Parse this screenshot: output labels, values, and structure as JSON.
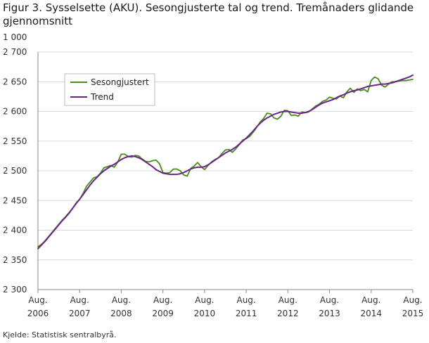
{
  "header": {
    "title": "Figur 3. Sysselsette (AKU).  Sesongjusterte tal og trend. Tremånaders glidande gjennomsnitt",
    "unit": "1 000"
  },
  "footer": {
    "source": "Kjelde: Statistisk sentralbyrå."
  },
  "colors": {
    "seasonal": "#4a8c1c",
    "trend": "#6b2487",
    "grid": "#d9d9d9",
    "axis": "#888888"
  },
  "chart_data": {
    "type": "line",
    "title": "Figur 3. Sysselsette (AKU).  Sesongjusterte tal og trend. Tremånaders glidande gjennomsnitt",
    "ylabel": "1 000",
    "xlabel": "",
    "ylim": [
      2300,
      2700
    ],
    "yticks": [
      2300,
      2350,
      2400,
      2450,
      2500,
      2550,
      2600,
      2650,
      2700
    ],
    "ytick_labels": [
      "2 300",
      "2 350",
      "2 400",
      "2 450",
      "2 500",
      "2 550",
      "2 600",
      "2 650",
      "2 700"
    ],
    "x_start": "2006-08",
    "x_end": "2015-08",
    "xticks": [
      {
        "month": "2006-08",
        "line1": "Aug.",
        "line2": "2006"
      },
      {
        "month": "2007-08",
        "line1": "Aug.",
        "line2": "2007"
      },
      {
        "month": "2008-08",
        "line1": "Aug.",
        "line2": "2008"
      },
      {
        "month": "2009-08",
        "line1": "Aug.",
        "line2": "2009"
      },
      {
        "month": "2010-08",
        "line1": "Aug.",
        "line2": "2010"
      },
      {
        "month": "2011-08",
        "line1": "Aug.",
        "line2": "2011"
      },
      {
        "month": "2012-08",
        "line1": "Aug.",
        "line2": "2012"
      },
      {
        "month": "2013-08",
        "line1": "Aug.",
        "line2": "2013"
      },
      {
        "month": "2014-08",
        "line1": "Aug.",
        "line2": "2014"
      },
      {
        "month": "2015-08",
        "line1": "Aug.",
        "line2": "2015"
      }
    ],
    "grid": true,
    "legend": "top-left",
    "series": [
      {
        "name": "Sesongjustert",
        "color": "#4a8c1c",
        "points": [
          [
            "2006-08",
            2372
          ],
          [
            "2006-09",
            2376
          ],
          [
            "2006-10",
            2382
          ],
          [
            "2006-11",
            2389
          ],
          [
            "2006-12",
            2396
          ],
          [
            "2007-01",
            2403
          ],
          [
            "2007-02",
            2410
          ],
          [
            "2007-03",
            2417
          ],
          [
            "2007-04",
            2423
          ],
          [
            "2007-05",
            2430
          ],
          [
            "2007-06",
            2437
          ],
          [
            "2007-07",
            2446
          ],
          [
            "2007-08",
            2452
          ],
          [
            "2007-09",
            2462
          ],
          [
            "2007-10",
            2474
          ],
          [
            "2007-11",
            2481
          ],
          [
            "2007-12",
            2488
          ],
          [
            "2008-01",
            2490
          ],
          [
            "2008-02",
            2496
          ],
          [
            "2008-03",
            2505
          ],
          [
            "2008-04",
            2507
          ],
          [
            "2008-05",
            2509
          ],
          [
            "2008-06",
            2506
          ],
          [
            "2008-07",
            2515
          ],
          [
            "2008-08",
            2528
          ],
          [
            "2008-09",
            2528
          ],
          [
            "2008-10",
            2524
          ],
          [
            "2008-11",
            2523
          ],
          [
            "2008-12",
            2526
          ],
          [
            "2009-01",
            2525
          ],
          [
            "2009-02",
            2520
          ],
          [
            "2009-03",
            2516
          ],
          [
            "2009-04",
            2515
          ],
          [
            "2009-05",
            2517
          ],
          [
            "2009-06",
            2518
          ],
          [
            "2009-07",
            2512
          ],
          [
            "2009-08",
            2497
          ],
          [
            "2009-09",
            2496
          ],
          [
            "2009-10",
            2497
          ],
          [
            "2009-11",
            2503
          ],
          [
            "2009-12",
            2503
          ],
          [
            "2010-01",
            2500
          ],
          [
            "2010-02",
            2493
          ],
          [
            "2010-03",
            2491
          ],
          [
            "2010-04",
            2504
          ],
          [
            "2010-05",
            2508
          ],
          [
            "2010-06",
            2514
          ],
          [
            "2010-07",
            2507
          ],
          [
            "2010-08",
            2502
          ],
          [
            "2010-09",
            2509
          ],
          [
            "2010-10",
            2515
          ],
          [
            "2010-11",
            2519
          ],
          [
            "2010-12",
            2522
          ],
          [
            "2011-01",
            2529
          ],
          [
            "2011-02",
            2535
          ],
          [
            "2011-03",
            2536
          ],
          [
            "2011-04",
            2531
          ],
          [
            "2011-05",
            2537
          ],
          [
            "2011-06",
            2544
          ],
          [
            "2011-07",
            2552
          ],
          [
            "2011-08",
            2554
          ],
          [
            "2011-09",
            2558
          ],
          [
            "2011-10",
            2565
          ],
          [
            "2011-11",
            2573
          ],
          [
            "2011-12",
            2582
          ],
          [
            "2012-01",
            2588
          ],
          [
            "2012-02",
            2597
          ],
          [
            "2012-03",
            2596
          ],
          [
            "2012-04",
            2589
          ],
          [
            "2012-05",
            2587
          ],
          [
            "2012-06",
            2592
          ],
          [
            "2012-07",
            2602
          ],
          [
            "2012-08",
            2601
          ],
          [
            "2012-09",
            2593
          ],
          [
            "2012-10",
            2594
          ],
          [
            "2012-11",
            2592
          ],
          [
            "2012-12",
            2599
          ],
          [
            "2013-01",
            2598
          ],
          [
            "2013-02",
            2599
          ],
          [
            "2013-03",
            2604
          ],
          [
            "2013-04",
            2609
          ],
          [
            "2013-05",
            2612
          ],
          [
            "2013-06",
            2617
          ],
          [
            "2013-07",
            2619
          ],
          [
            "2013-08",
            2624
          ],
          [
            "2013-09",
            2622
          ],
          [
            "2013-10",
            2621
          ],
          [
            "2013-11",
            2626
          ],
          [
            "2013-12",
            2623
          ],
          [
            "2014-01",
            2633
          ],
          [
            "2014-02",
            2639
          ],
          [
            "2014-03",
            2632
          ],
          [
            "2014-04",
            2638
          ],
          [
            "2014-05",
            2635
          ],
          [
            "2014-06",
            2637
          ],
          [
            "2014-07",
            2633
          ],
          [
            "2014-08",
            2652
          ],
          [
            "2014-09",
            2658
          ],
          [
            "2014-10",
            2655
          ],
          [
            "2014-11",
            2644
          ],
          [
            "2014-12",
            2641
          ],
          [
            "2015-01",
            2646
          ],
          [
            "2015-02",
            2650
          ],
          [
            "2015-03",
            2650
          ],
          [
            "2015-04",
            2651
          ],
          [
            "2015-05",
            2652
          ],
          [
            "2015-06",
            2652
          ],
          [
            "2015-07",
            2653
          ],
          [
            "2015-08",
            2654
          ]
        ]
      },
      {
        "name": "Trend",
        "color": "#6b2487",
        "points": [
          [
            "2006-08",
            2369
          ],
          [
            "2006-09",
            2375
          ],
          [
            "2006-10",
            2381
          ],
          [
            "2006-11",
            2388
          ],
          [
            "2006-12",
            2395
          ],
          [
            "2007-01",
            2402
          ],
          [
            "2007-02",
            2409
          ],
          [
            "2007-03",
            2416
          ],
          [
            "2007-04",
            2422
          ],
          [
            "2007-05",
            2429
          ],
          [
            "2007-06",
            2437
          ],
          [
            "2007-07",
            2445
          ],
          [
            "2007-08",
            2452
          ],
          [
            "2007-09",
            2460
          ],
          [
            "2007-10",
            2468
          ],
          [
            "2007-11",
            2476
          ],
          [
            "2007-12",
            2483
          ],
          [
            "2008-01",
            2489
          ],
          [
            "2008-02",
            2495
          ],
          [
            "2008-03",
            2500
          ],
          [
            "2008-04",
            2504
          ],
          [
            "2008-05",
            2508
          ],
          [
            "2008-06",
            2511
          ],
          [
            "2008-07",
            2515
          ],
          [
            "2008-08",
            2519
          ],
          [
            "2008-09",
            2522
          ],
          [
            "2008-10",
            2524
          ],
          [
            "2008-11",
            2525
          ],
          [
            "2008-12",
            2524
          ],
          [
            "2009-01",
            2522
          ],
          [
            "2009-02",
            2519
          ],
          [
            "2009-03",
            2515
          ],
          [
            "2009-04",
            2511
          ],
          [
            "2009-05",
            2507
          ],
          [
            "2009-06",
            2502
          ],
          [
            "2009-07",
            2499
          ],
          [
            "2009-08",
            2496
          ],
          [
            "2009-09",
            2495
          ],
          [
            "2009-10",
            2494
          ],
          [
            "2009-11",
            2494
          ],
          [
            "2009-12",
            2494
          ],
          [
            "2010-01",
            2495
          ],
          [
            "2010-02",
            2497
          ],
          [
            "2010-03",
            2500
          ],
          [
            "2010-04",
            2503
          ],
          [
            "2010-05",
            2505
          ],
          [
            "2010-06",
            2506
          ],
          [
            "2010-07",
            2506
          ],
          [
            "2010-08",
            2507
          ],
          [
            "2010-09",
            2510
          ],
          [
            "2010-10",
            2514
          ],
          [
            "2010-11",
            2518
          ],
          [
            "2010-12",
            2522
          ],
          [
            "2011-01",
            2526
          ],
          [
            "2011-02",
            2530
          ],
          [
            "2011-03",
            2533
          ],
          [
            "2011-04",
            2536
          ],
          [
            "2011-05",
            2540
          ],
          [
            "2011-06",
            2545
          ],
          [
            "2011-07",
            2550
          ],
          [
            "2011-08",
            2555
          ],
          [
            "2011-09",
            2561
          ],
          [
            "2011-10",
            2567
          ],
          [
            "2011-11",
            2574
          ],
          [
            "2011-12",
            2580
          ],
          [
            "2012-01",
            2585
          ],
          [
            "2012-02",
            2589
          ],
          [
            "2012-03",
            2592
          ],
          [
            "2012-04",
            2595
          ],
          [
            "2012-05",
            2597
          ],
          [
            "2012-06",
            2599
          ],
          [
            "2012-07",
            2600
          ],
          [
            "2012-08",
            2600
          ],
          [
            "2012-09",
            2599
          ],
          [
            "2012-10",
            2598
          ],
          [
            "2012-11",
            2597
          ],
          [
            "2012-12",
            2597
          ],
          [
            "2013-01",
            2598
          ],
          [
            "2013-02",
            2600
          ],
          [
            "2013-03",
            2603
          ],
          [
            "2013-04",
            2607
          ],
          [
            "2013-05",
            2611
          ],
          [
            "2013-06",
            2614
          ],
          [
            "2013-07",
            2616
          ],
          [
            "2013-08",
            2618
          ],
          [
            "2013-09",
            2620
          ],
          [
            "2013-10",
            2623
          ],
          [
            "2013-11",
            2626
          ],
          [
            "2013-12",
            2628
          ],
          [
            "2014-01",
            2631
          ],
          [
            "2014-02",
            2633
          ],
          [
            "2014-03",
            2635
          ],
          [
            "2014-04",
            2636
          ],
          [
            "2014-05",
            2638
          ],
          [
            "2014-06",
            2640
          ],
          [
            "2014-07",
            2642
          ],
          [
            "2014-08",
            2643
          ],
          [
            "2014-09",
            2644
          ],
          [
            "2014-10",
            2645
          ],
          [
            "2014-11",
            2646
          ],
          [
            "2014-12",
            2646
          ],
          [
            "2015-01",
            2647
          ],
          [
            "2015-02",
            2648
          ],
          [
            "2015-03",
            2650
          ],
          [
            "2015-04",
            2652
          ],
          [
            "2015-05",
            2654
          ],
          [
            "2015-06",
            2656
          ],
          [
            "2015-07",
            2658
          ],
          [
            "2015-08",
            2661
          ]
        ]
      }
    ]
  }
}
